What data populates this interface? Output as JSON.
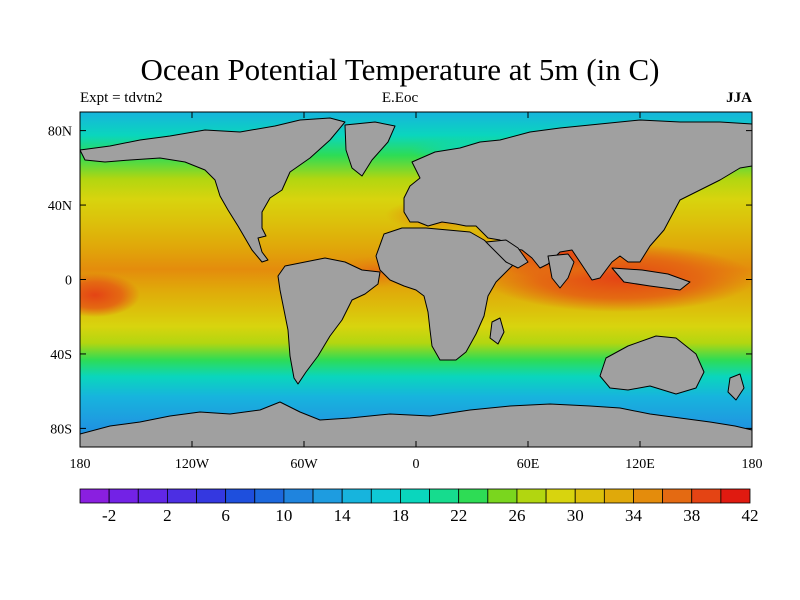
{
  "title": "Ocean Potential Temperature at 5m (in C)",
  "subtitle_left": "Expt = tdvtn2",
  "subtitle_center": "E.Eoc",
  "subtitle_right": "JJA",
  "map": {
    "projection": "cylindrical-equidistant",
    "lon_range": [
      -180,
      180
    ],
    "lat_range": [
      -90,
      90
    ],
    "land_color": "#a0a0a0",
    "lon_ticks": [
      {
        "value": -180,
        "label": "180"
      },
      {
        "value": -120,
        "label": "120W"
      },
      {
        "value": -60,
        "label": "60W"
      },
      {
        "value": 0,
        "label": "0"
      },
      {
        "value": 60,
        "label": "60E"
      },
      {
        "value": 120,
        "label": "120E"
      },
      {
        "value": 180,
        "label": "180"
      }
    ],
    "lat_ticks": [
      {
        "value": 80,
        "label": "80N"
      },
      {
        "value": 40,
        "label": "40N"
      },
      {
        "value": 0,
        "label": "0"
      },
      {
        "value": -40,
        "label": "40S"
      },
      {
        "value": -80,
        "label": "80S"
      }
    ]
  },
  "colorbar": {
    "colors": [
      "#8a1fe0",
      "#7322e6",
      "#6127e6",
      "#4c2fe3",
      "#3438e0",
      "#1e4fdd",
      "#1c68dd",
      "#1f84de",
      "#1e9ce0",
      "#17b4dd",
      "#0fc9d6",
      "#0ad6bd",
      "#16dc8e",
      "#2edc55",
      "#7ad61e",
      "#b2d610",
      "#d8d40e",
      "#dcc00b",
      "#e0a90a",
      "#e48c0c",
      "#e46a12",
      "#e44414",
      "#e01a10"
    ],
    "tick_labels": [
      "-2",
      "2",
      "6",
      "10",
      "14",
      "18",
      "22",
      "26",
      "30",
      "34",
      "38",
      "42"
    ]
  }
}
